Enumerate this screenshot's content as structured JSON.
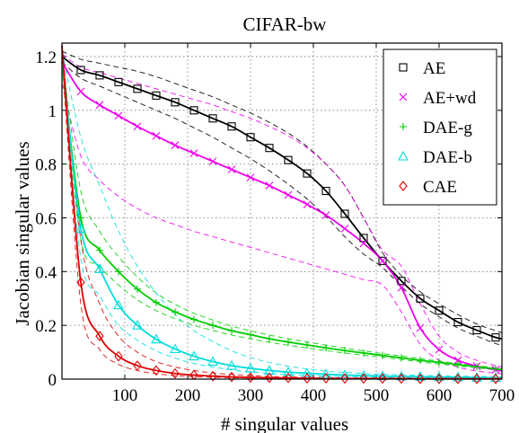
{
  "chart_data": {
    "type": "line",
    "title": "CIFAR-bw",
    "xlabel": "# singular values",
    "ylabel": "Jacobian singular values",
    "xlim": [
      0,
      700
    ],
    "ylim": [
      0,
      1.25
    ],
    "xticks": [
      100,
      200,
      300,
      400,
      500,
      600,
      700
    ],
    "yticks": [
      0,
      0.2,
      0.4,
      0.6,
      0.8,
      1,
      1.2
    ],
    "xtick_labels": [
      "100",
      "200",
      "300",
      "400",
      "500",
      "600",
      "700"
    ],
    "ytick_labels": [
      "0",
      "0.2",
      "0.4",
      "0.6",
      "0.8",
      "1",
      "1.2"
    ],
    "grid": true,
    "legend_position": "top-right",
    "series": [
      {
        "name": "AE",
        "color": "#000000",
        "marker": "square",
        "x": [
          0,
          30,
          60,
          90,
          120,
          150,
          180,
          210,
          240,
          270,
          300,
          330,
          360,
          390,
          420,
          450,
          480,
          510,
          540,
          570,
          600,
          630,
          660,
          690,
          700
        ],
        "y": [
          1.2,
          1.15,
          1.13,
          1.105,
          1.08,
          1.055,
          1.03,
          1.0,
          0.97,
          0.94,
          0.9,
          0.86,
          0.815,
          0.765,
          0.7,
          0.615,
          0.525,
          0.44,
          0.365,
          0.3,
          0.255,
          0.212,
          0.182,
          0.155,
          0.15
        ],
        "upper": [
          1.22,
          1.19,
          1.175,
          1.16,
          1.145,
          1.125,
          1.1,
          1.075,
          1.05,
          1.02,
          0.99,
          0.955,
          0.915,
          0.865,
          0.8,
          0.72,
          0.6,
          0.47,
          0.385,
          0.325,
          0.28,
          0.24,
          0.205,
          0.18,
          0.172
        ],
        "lower": [
          1.18,
          1.12,
          1.09,
          1.06,
          1.03,
          1.0,
          0.97,
          0.935,
          0.9,
          0.86,
          0.82,
          0.775,
          0.725,
          0.67,
          0.605,
          0.53,
          0.465,
          0.415,
          0.345,
          0.28,
          0.232,
          0.19,
          0.16,
          0.132,
          0.128
        ]
      },
      {
        "name": "AE+wd",
        "color": "#ee00ee",
        "marker": "x",
        "x": [
          0,
          30,
          60,
          90,
          120,
          150,
          180,
          210,
          240,
          270,
          300,
          330,
          360,
          390,
          420,
          450,
          480,
          510,
          540,
          570,
          600,
          630,
          660,
          690,
          700
        ],
        "y": [
          1.18,
          1.07,
          1.02,
          0.98,
          0.94,
          0.905,
          0.87,
          0.84,
          0.81,
          0.78,
          0.75,
          0.72,
          0.685,
          0.65,
          0.61,
          0.56,
          0.505,
          0.44,
          0.34,
          0.19,
          0.11,
          0.07,
          0.048,
          0.035,
          0.03
        ],
        "upper": [
          1.21,
          1.16,
          1.14,
          1.12,
          1.1,
          1.08,
          1.06,
          1.04,
          1.02,
          0.995,
          0.97,
          0.94,
          0.905,
          0.86,
          0.8,
          0.72,
          0.6,
          0.48,
          0.42,
          0.28,
          0.16,
          0.1,
          0.07,
          0.05,
          0.045
        ],
        "lower": [
          1.1,
          0.83,
          0.74,
          0.68,
          0.635,
          0.6,
          0.575,
          0.55,
          0.53,
          0.51,
          0.49,
          0.47,
          0.45,
          0.43,
          0.41,
          0.39,
          0.37,
          0.35,
          0.25,
          0.13,
          0.07,
          0.045,
          0.03,
          0.022,
          0.02
        ]
      },
      {
        "name": "DAE-g",
        "color": "#00cc00",
        "marker": "plus",
        "x": [
          0,
          30,
          60,
          90,
          120,
          150,
          180,
          210,
          240,
          270,
          300,
          330,
          360,
          390,
          420,
          450,
          480,
          510,
          540,
          570,
          600,
          630,
          660,
          690,
          700
        ],
        "y": [
          1.18,
          0.6,
          0.48,
          0.4,
          0.335,
          0.285,
          0.25,
          0.222,
          0.2,
          0.18,
          0.165,
          0.15,
          0.138,
          0.127,
          0.116,
          0.106,
          0.097,
          0.088,
          0.079,
          0.07,
          0.062,
          0.054,
          0.046,
          0.038,
          0.035
        ],
        "upper": [
          1.2,
          0.7,
          0.55,
          0.455,
          0.38,
          0.32,
          0.278,
          0.245,
          0.22,
          0.197,
          0.18,
          0.164,
          0.15,
          0.138,
          0.126,
          0.115,
          0.105,
          0.095,
          0.086,
          0.076,
          0.067,
          0.058,
          0.05,
          0.042,
          0.039
        ],
        "lower": [
          1.16,
          0.52,
          0.42,
          0.35,
          0.295,
          0.255,
          0.225,
          0.2,
          0.181,
          0.164,
          0.15,
          0.137,
          0.126,
          0.116,
          0.106,
          0.097,
          0.089,
          0.081,
          0.073,
          0.064,
          0.056,
          0.049,
          0.042,
          0.034,
          0.031
        ]
      },
      {
        "name": "DAE-b",
        "color": "#00dddd",
        "marker": "triangle",
        "x": [
          0,
          30,
          60,
          90,
          120,
          150,
          180,
          210,
          240,
          270,
          300,
          330,
          360,
          390,
          420,
          450,
          480,
          510,
          540,
          570,
          600,
          630,
          660,
          690,
          700
        ],
        "y": [
          1.2,
          0.56,
          0.41,
          0.275,
          0.2,
          0.148,
          0.112,
          0.085,
          0.065,
          0.05,
          0.04,
          0.032,
          0.026,
          0.022,
          0.018,
          0.015,
          0.013,
          0.011,
          0.01,
          0.009,
          0.008,
          0.007,
          0.006,
          0.005,
          0.005
        ],
        "upper": [
          1.22,
          0.9,
          0.72,
          0.55,
          0.42,
          0.32,
          0.24,
          0.18,
          0.14,
          0.105,
          0.08,
          0.062,
          0.048,
          0.038,
          0.03,
          0.025,
          0.021,
          0.018,
          0.016,
          0.014,
          0.012,
          0.011,
          0.01,
          0.009,
          0.009
        ],
        "lower": [
          1.18,
          0.45,
          0.31,
          0.2,
          0.145,
          0.105,
          0.078,
          0.058,
          0.045,
          0.034,
          0.027,
          0.021,
          0.017,
          0.014,
          0.011,
          0.009,
          0.008,
          0.007,
          0.006,
          0.005,
          0.004,
          0.004,
          0.003,
          0.003,
          0.003
        ]
      },
      {
        "name": "CAE",
        "color": "#dd0000",
        "marker": "diamond",
        "x": [
          0,
          30,
          60,
          90,
          120,
          150,
          180,
          210,
          240,
          270,
          300,
          330,
          360,
          390,
          420,
          450,
          480,
          510,
          540,
          570,
          600,
          630,
          660,
          690,
          700
        ],
        "y": [
          1.24,
          0.36,
          0.16,
          0.085,
          0.05,
          0.032,
          0.021,
          0.015,
          0.011,
          0.008,
          0.006,
          0.005,
          0.004,
          0.003,
          0.003,
          0.002,
          0.002,
          0.002,
          0.002,
          0.001,
          0.001,
          0.001,
          0.001,
          0.001,
          0.001
        ],
        "upper": [
          1.25,
          0.52,
          0.28,
          0.16,
          0.1,
          0.065,
          0.045,
          0.032,
          0.023,
          0.017,
          0.013,
          0.01,
          0.008,
          0.007,
          0.006,
          0.005,
          0.004,
          0.004,
          0.003,
          0.003,
          0.003,
          0.002,
          0.002,
          0.002,
          0.002
        ],
        "lower": [
          1.2,
          0.28,
          0.11,
          0.055,
          0.032,
          0.02,
          0.013,
          0.009,
          0.007,
          0.005,
          0.004,
          0.003,
          0.003,
          0.002,
          0.002,
          0.001,
          0.001,
          0.001,
          0.001,
          0.001,
          0.001,
          0.0,
          0.0,
          0.0,
          0.0
        ]
      }
    ]
  }
}
